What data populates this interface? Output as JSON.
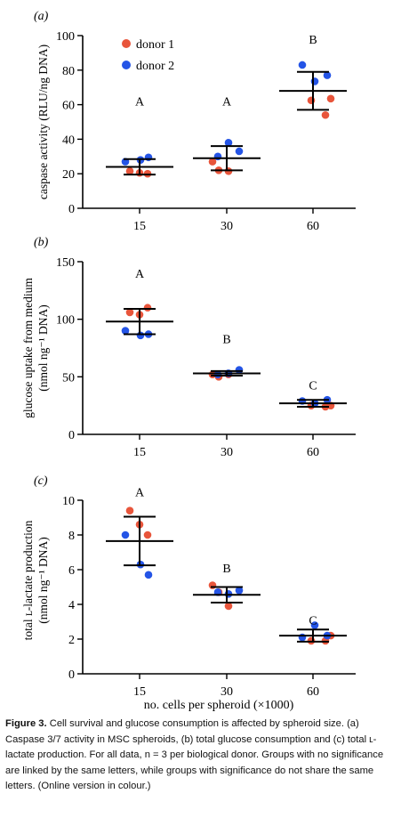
{
  "chart_data": [
    {
      "type": "scatter",
      "panel_label": "(a)",
      "ylabel": "caspase activity (RLU/ng DNA)",
      "ylim": [
        0,
        100
      ],
      "yticks": [
        "0",
        "20",
        "40",
        "60",
        "80",
        "100"
      ],
      "categories": [
        "15",
        "30",
        "60"
      ],
      "series": [
        {
          "name": "donor 1",
          "color": "#e8553b",
          "points": [
            [
              0,
              21.5
            ],
            [
              0,
              20.5
            ],
            [
              0,
              20.0
            ],
            [
              1,
              27.0
            ],
            [
              1,
              22.0
            ],
            [
              1,
              21.5
            ],
            [
              2,
              62.5
            ],
            [
              2,
              54.0
            ],
            [
              2,
              63.5
            ]
          ]
        },
        {
          "name": "donor 2",
          "color": "#2454e6",
          "points": [
            [
              0,
              27.0
            ],
            [
              0,
              28.0
            ],
            [
              0,
              29.5
            ],
            [
              1,
              38.0
            ],
            [
              1,
              30.0
            ],
            [
              1,
              33.0
            ],
            [
              2,
              83.0
            ],
            [
              2,
              73.5
            ],
            [
              2,
              77.0
            ]
          ]
        }
      ],
      "mean": [
        24.0,
        29.0,
        68.0
      ],
      "sd": [
        4.5,
        7.0,
        11.0
      ],
      "letters": [
        "A",
        "A",
        "B"
      ],
      "letter_y": [
        62,
        62,
        98
      ],
      "legend": {
        "position": "top-left"
      }
    },
    {
      "type": "scatter",
      "panel_label": "(b)",
      "ylabel_lines": [
        "glucose uptake from medium",
        "(nmol ng⁻¹ DNA)"
      ],
      "ylim": [
        0,
        150
      ],
      "yticks": [
        "0",
        "50",
        "100",
        "150"
      ],
      "categories": [
        "15",
        "30",
        "60"
      ],
      "series": [
        {
          "name": "donor 1",
          "color": "#e8553b",
          "points": [
            [
              0,
              106
            ],
            [
              0,
              104
            ],
            [
              0,
              110
            ],
            [
              1,
              52
            ],
            [
              1,
              50
            ],
            [
              1,
              52
            ],
            [
              2,
              25
            ],
            [
              2,
              24
            ],
            [
              2,
              25
            ]
          ]
        },
        {
          "name": "donor 2",
          "color": "#2454e6",
          "points": [
            [
              0,
              90
            ],
            [
              0,
              86
            ],
            [
              0,
              87
            ],
            [
              1,
              53
            ],
            [
              1,
              52
            ],
            [
              1,
              56
            ],
            [
              2,
              29
            ],
            [
              2,
              27
            ],
            [
              2,
              30
            ]
          ]
        }
      ],
      "mean": [
        98,
        53,
        27
      ],
      "sd": [
        11,
        2,
        3
      ],
      "letters": [
        "A",
        "B",
        "C"
      ],
      "letter_y": [
        140,
        83,
        43
      ]
    },
    {
      "type": "scatter",
      "panel_label": "(c)",
      "ylabel_lines": [
        "total ʟ-lactate production",
        "(nmol ng⁻¹ DNA)"
      ],
      "ylim": [
        0,
        10
      ],
      "yticks": [
        "0",
        "2",
        "4",
        "6",
        "8",
        "10"
      ],
      "categories": [
        "15",
        "30",
        "60"
      ],
      "xlabel": "no. cells per spheroid (×1000)",
      "series": [
        {
          "name": "donor 1",
          "color": "#e8553b",
          "points": [
            [
              0,
              9.4
            ],
            [
              0,
              8.6
            ],
            [
              0,
              8.0
            ],
            [
              1,
              5.1
            ],
            [
              1,
              4.7
            ],
            [
              1,
              3.9
            ],
            [
              2,
              1.9
            ],
            [
              2,
              1.9
            ],
            [
              2,
              2.2
            ]
          ]
        },
        {
          "name": "donor 2",
          "color": "#2454e6",
          "points": [
            [
              0,
              8.0
            ],
            [
              0,
              6.3
            ],
            [
              0,
              5.7
            ],
            [
              1,
              4.6
            ],
            [
              1,
              4.7
            ],
            [
              1,
              4.8
            ],
            [
              2,
              2.1
            ],
            [
              2,
              2.8
            ],
            [
              2,
              2.2
            ]
          ]
        }
      ],
      "mean": [
        7.65,
        4.55,
        2.2
      ],
      "sd": [
        1.4,
        0.45,
        0.35
      ],
      "letters": [
        "A",
        "B",
        "C"
      ],
      "letter_y": [
        10.5,
        6.1,
        3.1
      ]
    }
  ],
  "caption": {
    "label": "Figure 3.",
    "text": " Cell survival and glucose consumption is affected by spheroid size. (a) Caspase 3/7 activity in MSC spheroids, (b) total glucose consumption and (c) total ʟ-lactate production. For all data, n = 3 per biological donor. Groups with no significance are linked by the same letters, while groups with significance do not share the same letters. (Online version in colour.)"
  }
}
